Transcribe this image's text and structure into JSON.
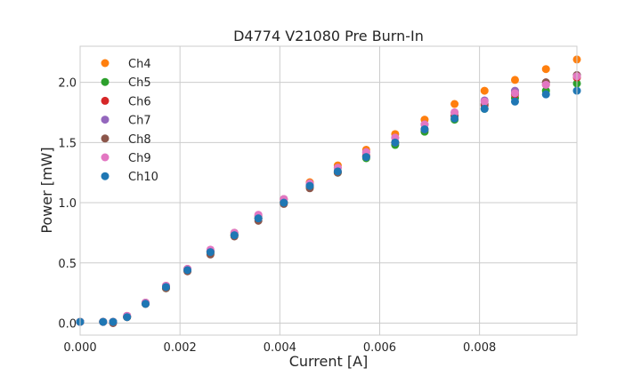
{
  "chart_data": {
    "type": "scatter",
    "title": "D4774 V21080 Pre Burn-In",
    "xlabel": "Current [A]",
    "ylabel": "Power [mW]",
    "xlim": [
      0,
      0.00995
    ],
    "ylim": [
      -0.1,
      2.3
    ],
    "x_ticks": [
      0.0,
      0.002,
      0.004,
      0.006,
      0.008
    ],
    "x_tick_labels": [
      "0.000",
      "0.002",
      "0.004",
      "0.006",
      "0.008"
    ],
    "y_ticks": [
      0.0,
      0.5,
      1.0,
      1.5,
      2.0
    ],
    "y_tick_labels": [
      "0.0",
      "0.5",
      "1.0",
      "1.5",
      "2.0"
    ],
    "grid": true,
    "legend_position": "top-left",
    "x": [
      0.0,
      0.00046,
      0.00066,
      0.00094,
      0.00131,
      0.00172,
      0.00215,
      0.00261,
      0.00309,
      0.00357,
      0.00408,
      0.0046,
      0.00516,
      0.00573,
      0.00631,
      0.0069,
      0.0075,
      0.0081,
      0.00871,
      0.00933,
      0.00995
    ],
    "series": [
      {
        "name": "Ch4",
        "color": "#ff7f0e",
        "values": [
          0.01,
          0.01,
          0.01,
          0.06,
          0.17,
          0.31,
          0.45,
          0.6,
          0.75,
          0.89,
          1.03,
          1.17,
          1.31,
          1.44,
          1.57,
          1.69,
          1.82,
          1.93,
          2.02,
          2.11,
          2.19
        ]
      },
      {
        "name": "Ch5",
        "color": "#2ca02c",
        "values": [
          0.01,
          0.01,
          0.01,
          0.05,
          0.16,
          0.29,
          0.44,
          0.58,
          0.73,
          0.87,
          1.0,
          1.13,
          1.25,
          1.37,
          1.48,
          1.59,
          1.69,
          1.78,
          1.87,
          1.93,
          1.99
        ]
      },
      {
        "name": "Ch6",
        "color": "#d62728",
        "values": [
          0.01,
          0.01,
          0.01,
          0.05,
          0.16,
          0.3,
          0.44,
          0.59,
          0.73,
          0.87,
          1.0,
          1.14,
          1.26,
          1.39,
          1.5,
          1.61,
          1.72,
          1.81,
          1.9,
          1.98,
          2.04
        ]
      },
      {
        "name": "Ch7",
        "color": "#9467bd",
        "values": [
          0.01,
          0.01,
          0.01,
          0.06,
          0.17,
          0.31,
          0.45,
          0.6,
          0.75,
          0.89,
          1.03,
          1.16,
          1.29,
          1.42,
          1.54,
          1.65,
          1.75,
          1.85,
          1.93,
          2.0,
          2.06
        ]
      },
      {
        "name": "Ch8",
        "color": "#8c564b",
        "values": [
          0.01,
          0.01,
          0.0,
          0.05,
          0.16,
          0.29,
          0.43,
          0.57,
          0.72,
          0.85,
          0.99,
          1.12,
          1.25,
          1.38,
          1.5,
          1.61,
          1.72,
          1.82,
          1.91,
          2.0,
          2.06
        ]
      },
      {
        "name": "Ch9",
        "color": "#e377c2",
        "values": [
          0.01,
          0.01,
          0.01,
          0.06,
          0.17,
          0.31,
          0.45,
          0.61,
          0.75,
          0.9,
          1.03,
          1.16,
          1.29,
          1.42,
          1.54,
          1.65,
          1.75,
          1.84,
          1.91,
          1.98,
          2.05
        ]
      },
      {
        "name": "Ch10",
        "color": "#1f77b4",
        "values": [
          0.01,
          0.01,
          0.01,
          0.05,
          0.16,
          0.3,
          0.44,
          0.59,
          0.73,
          0.87,
          1.0,
          1.14,
          1.26,
          1.38,
          1.5,
          1.61,
          1.7,
          1.78,
          1.84,
          1.9,
          1.93
        ]
      }
    ]
  }
}
